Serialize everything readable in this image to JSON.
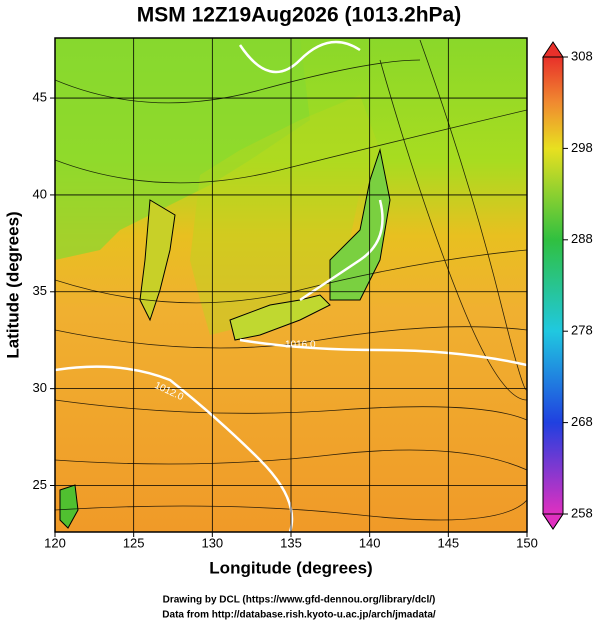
{
  "header": {
    "title": "MSM 12Z19Aug2026 (1013.2hPa)"
  },
  "x_axis": {
    "label": "Longitude (degrees)",
    "lim": [
      120,
      150
    ],
    "ticks": [
      120,
      125,
      130,
      135,
      140,
      145,
      150
    ]
  },
  "y_axis": {
    "label": "Latitude  (degrees)",
    "lim": [
      22.6,
      48.1
    ],
    "ticks": [
      25,
      30,
      35,
      40,
      45
    ]
  },
  "colorbar": {
    "lim": [
      258,
      308
    ],
    "ticks": [
      308,
      298,
      288,
      278,
      268,
      258
    ]
  },
  "contour_labels": [
    "1016.0",
    "1012.0"
  ],
  "footer": {
    "line1": "Drawing by DCL (https://www.gfd-dennou.org/library/dcl/)",
    "line2": "Data from http://database.rish.kyoto-u.ac.jp/arch/jmadata/"
  }
}
